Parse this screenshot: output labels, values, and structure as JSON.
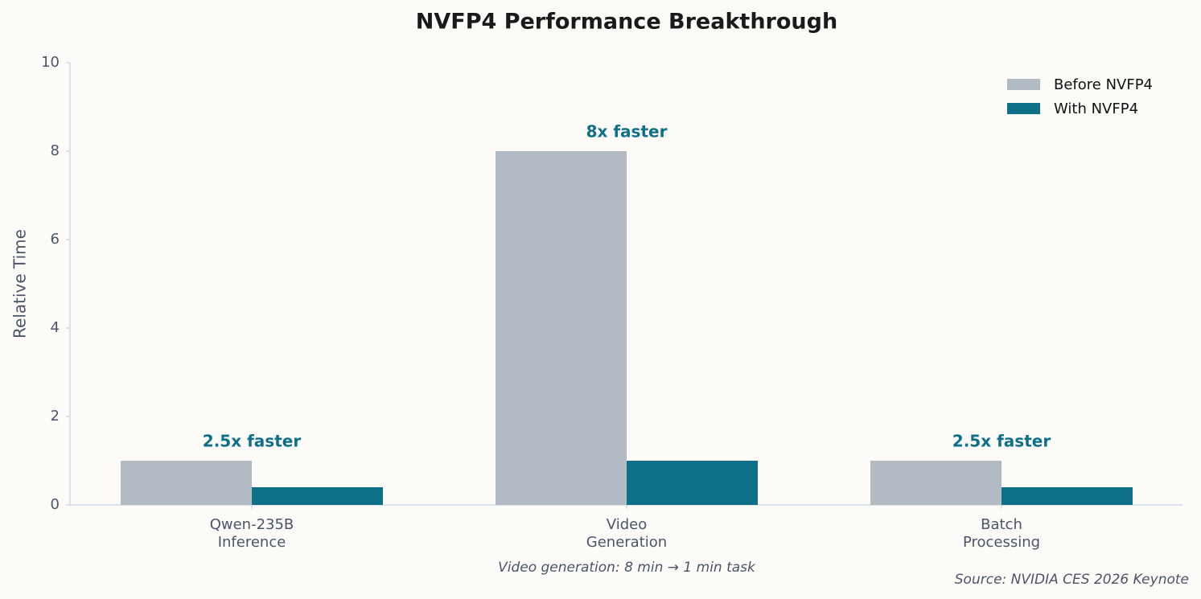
{
  "chart_data": {
    "type": "bar",
    "title": "NVFP4 Performance Breakthrough",
    "y_label": "Relative Time",
    "categories": [
      "Qwen-235B\nInference",
      "Video\nGeneration",
      "Batch\nProcessing"
    ],
    "series": [
      {
        "name": "Before NVFP4",
        "color": "#b2bbc4",
        "values": [
          1,
          8,
          1
        ]
      },
      {
        "name": "With NVFP4",
        "color": "#0e6f88",
        "values": [
          0.4,
          1,
          0.4
        ]
      }
    ],
    "annotations": [
      "2.5x faster",
      "8x faster",
      "2.5x faster"
    ],
    "annotation_color": "#0e6f88",
    "ylim": [
      0,
      10
    ],
    "yticks": [
      0,
      2,
      4,
      6,
      8,
      10
    ],
    "grid": false,
    "legend": "upper right",
    "footnote": "Video generation: 8 min → 1 min task",
    "source": "Source: NVIDIA CES 2026 Keynote"
  }
}
